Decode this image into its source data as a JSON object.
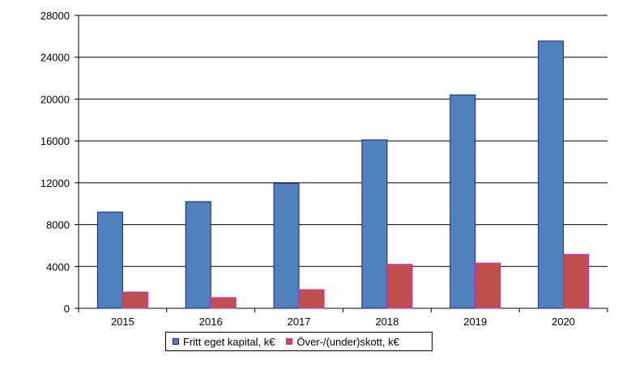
{
  "chart_data": {
    "type": "bar",
    "title": "",
    "xlabel": "",
    "ylabel": "",
    "categories": [
      "2015",
      "2016",
      "2017",
      "2018",
      "2019",
      "2020"
    ],
    "series": [
      {
        "name": "Fritt eget kapital, k€",
        "values": [
          9200,
          10200,
          11950,
          16100,
          20400,
          25550
        ],
        "color": "#4F81BD",
        "border": "#1F1F8F"
      },
      {
        "name": "Över-/(under)skott, k€",
        "values": [
          1550,
          1020,
          1780,
          4200,
          4320,
          5150
        ],
        "color": "#C0504D",
        "border": "#D020D0"
      }
    ],
    "ylim": [
      0,
      28000
    ],
    "yticks": [
      "0",
      "4000",
      "8000",
      "12000",
      "16000",
      "20000",
      "24000",
      "28000"
    ],
    "grid": true,
    "legend_position": "bottom"
  }
}
